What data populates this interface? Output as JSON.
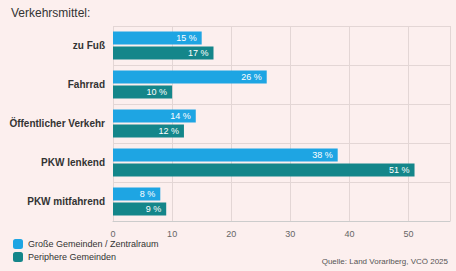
{
  "chart_data": {
    "type": "bar",
    "title": "Verkehrsmittel:",
    "orientation": "horizontal",
    "categories": [
      "zu Fuß",
      "Fahrrad",
      "Öffentlicher Verkehr",
      "PKW lenkend",
      "PKW mitfahrend"
    ],
    "series": [
      {
        "name": "Große Gemeinden / Zentralraum",
        "color": "#1ea5e3",
        "values": [
          15,
          26,
          14,
          38,
          8
        ],
        "value_labels": [
          "15 %",
          "26 %",
          "14 %",
          "38 %",
          "8 %"
        ]
      },
      {
        "name": "Periphere Gemeinden",
        "color": "#14868a",
        "values": [
          17,
          10,
          12,
          51,
          9
        ],
        "value_labels": [
          "17 %",
          "10 %",
          "12 %",
          "51 %",
          "9 %"
        ]
      }
    ],
    "xlim": [
      0,
      57
    ],
    "xticks": [
      0,
      10,
      20,
      30,
      40,
      50
    ],
    "grid": true,
    "data_labels": true,
    "legend": "bottom-left",
    "annotations": [
      "Quelle: Land Vorarlberg, VCÖ 2025"
    ]
  }
}
